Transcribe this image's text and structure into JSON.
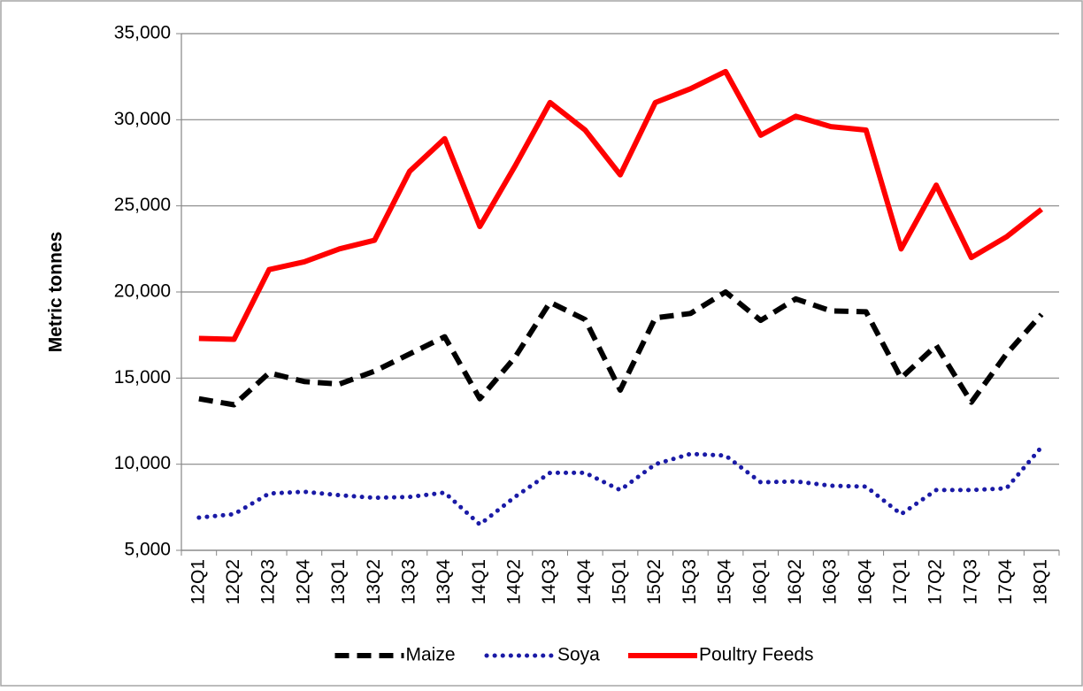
{
  "chart_data": {
    "type": "line",
    "y_label": "Metric tonnes",
    "categories": [
      "12Q1",
      "12Q2",
      "12Q3",
      "12Q4",
      "13Q1",
      "13Q2",
      "13Q3",
      "13Q4",
      "14Q1",
      "14Q2",
      "14Q3",
      "14Q4",
      "15Q1",
      "15Q2",
      "15Q3",
      "15Q4",
      "16Q1",
      "16Q2",
      "16Q3",
      "16Q4",
      "17Q1",
      "17Q2",
      "17Q3",
      "17Q4",
      "18Q1"
    ],
    "series": [
      {
        "name": "Maize",
        "color": "#000000",
        "style": "dashed",
        "values": [
          13800,
          13450,
          15300,
          14800,
          14650,
          15400,
          16400,
          17400,
          13800,
          16200,
          19400,
          18400,
          14300,
          18500,
          18750,
          20000,
          18350,
          19600,
          18900,
          18850,
          15000,
          16900,
          13600,
          16400,
          18700
        ]
      },
      {
        "name": "Soya",
        "color": "#1a1aa6",
        "style": "dotted",
        "values": [
          6900,
          7100,
          8300,
          8400,
          8200,
          8050,
          8100,
          8350,
          6500,
          8100,
          9500,
          9500,
          8500,
          10000,
          10600,
          10500,
          8950,
          9000,
          8750,
          8700,
          7100,
          8500,
          8500,
          8600,
          11000
        ]
      },
      {
        "name": "Poultry Feeds",
        "color": "#ff0000",
        "style": "solid",
        "values": [
          17300,
          17250,
          21300,
          21750,
          22500,
          23000,
          27000,
          28900,
          23800,
          27300,
          31000,
          29400,
          26800,
          31000,
          31800,
          32800,
          29100,
          30200,
          29600,
          29400,
          22500,
          26200,
          22000,
          23200,
          24800
        ]
      }
    ],
    "ylim": [
      5000,
      35000
    ],
    "yticks": [
      {
        "value": 5000,
        "label": "5,000"
      },
      {
        "value": 10000,
        "label": "10,000"
      },
      {
        "value": 15000,
        "label": "15,000"
      },
      {
        "value": 20000,
        "label": "20,000"
      },
      {
        "value": 25000,
        "label": "25,000"
      },
      {
        "value": 30000,
        "label": "30,000"
      },
      {
        "value": 35000,
        "label": "35,000"
      }
    ],
    "grid": true,
    "legend": "bottom"
  }
}
